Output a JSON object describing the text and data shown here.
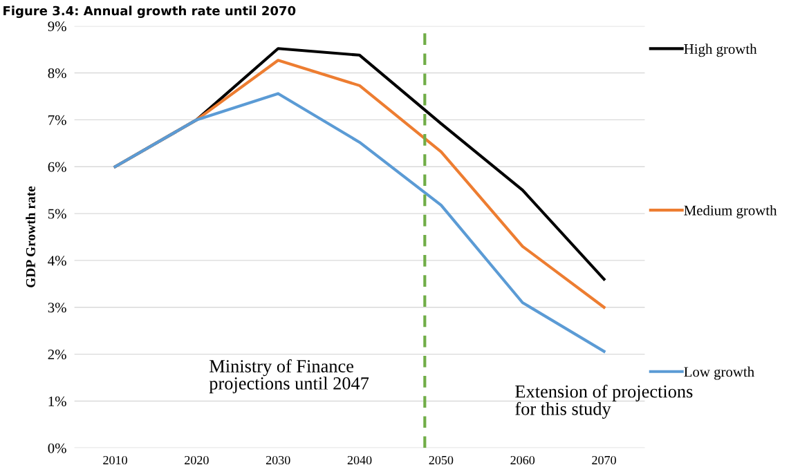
{
  "chart_data": {
    "type": "line",
    "title": "Figure 3.4: Annual growth rate until 2070",
    "ylabel": "GDP Growth rate",
    "x": [
      2010,
      2020,
      2030,
      2040,
      2050,
      2060,
      2070
    ],
    "series": [
      {
        "name": "High growth",
        "color": "#000000",
        "values": [
          6.0,
          7.0,
          8.52,
          8.38,
          6.92,
          5.5,
          3.6
        ]
      },
      {
        "name": "Medium growth",
        "color": "#ed7d31",
        "values": [
          6.0,
          7.0,
          8.27,
          7.73,
          6.32,
          4.3,
          3.0
        ]
      },
      {
        "name": "Low growth",
        "color": "#5b9bd5",
        "values": [
          6.0,
          7.0,
          7.56,
          6.52,
          5.18,
          3.1,
          2.06
        ]
      }
    ],
    "xlim": [
      2005,
      2075
    ],
    "xticks": [
      2010,
      2020,
      2030,
      2040,
      2050,
      2060,
      2070
    ],
    "ylim": [
      0,
      9
    ],
    "yticks": [
      {
        "value": 0,
        "label": "0%"
      },
      {
        "value": 1,
        "label": "1%"
      },
      {
        "value": 2,
        "label": "2%"
      },
      {
        "value": 3,
        "label": "3%"
      },
      {
        "value": 4,
        "label": "4%"
      },
      {
        "value": 5,
        "label": "5%"
      },
      {
        "value": 6,
        "label": "6%"
      },
      {
        "value": 7,
        "label": "7%"
      },
      {
        "value": 8,
        "label": "8%"
      },
      {
        "value": 9,
        "label": "9%"
      }
    ],
    "ref_lines": [
      {
        "axis": "x",
        "value": 2048,
        "color": "#70ad47",
        "line_style": "dashed"
      }
    ],
    "annotations": [
      "Ministry of Finance\nprojections until 2047",
      "Extension of projections\nfor this study"
    ],
    "grid": "y",
    "legend": "right",
    "marker": "none",
    "line_style": "solid"
  }
}
